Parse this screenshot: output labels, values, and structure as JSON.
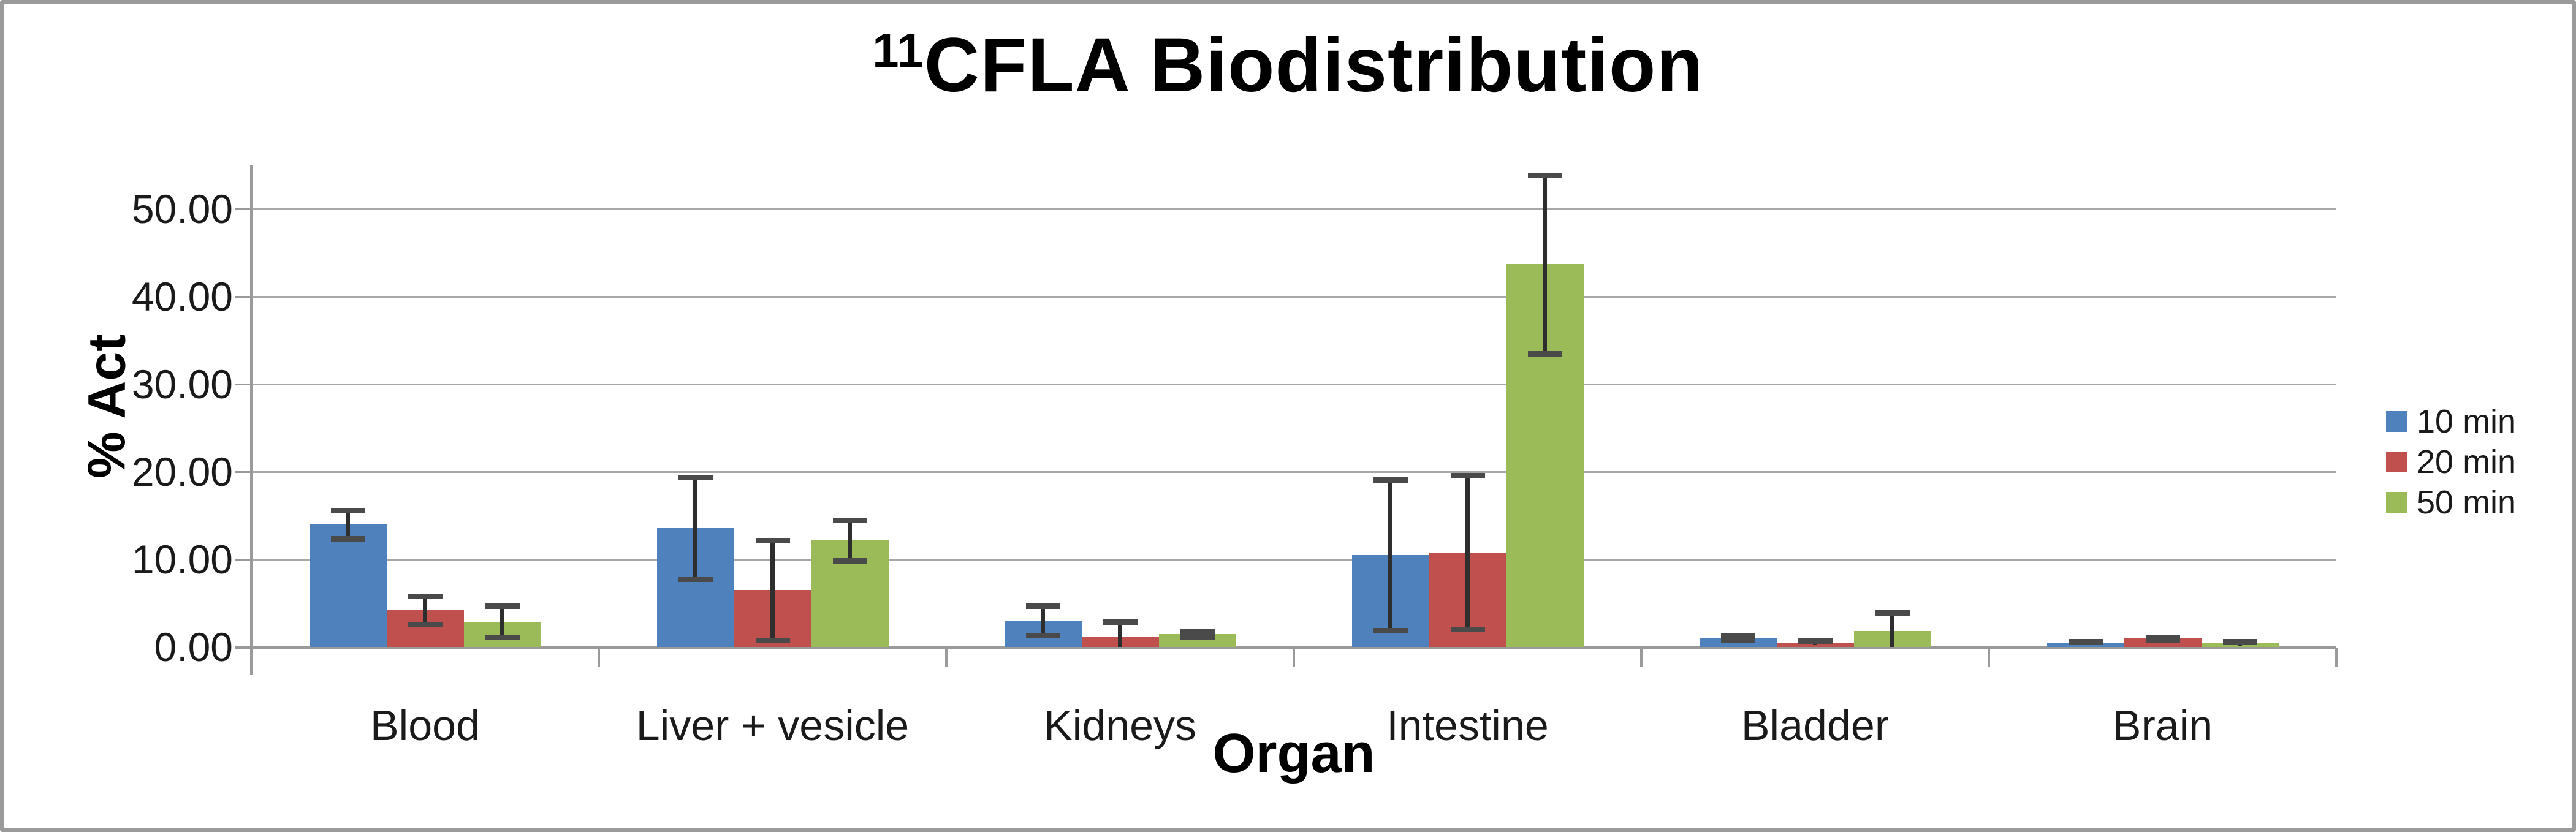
{
  "title": {
    "superscript": "11",
    "text": "CFLA Biodistribution"
  },
  "axes": {
    "y_label": "% Act",
    "x_label": "Organ"
  },
  "legend": {
    "position": "right",
    "items": [
      {
        "label": "10 min",
        "color": "#4F81BD"
      },
      {
        "label": "20 min",
        "color": "#C0504D"
      },
      {
        "label": "50 min",
        "color": "#9BBB59"
      }
    ]
  },
  "colors": {
    "gridline": "#a8a8a8",
    "axis": "#9a9a9a",
    "error_bar_line": "#2e2e2e",
    "error_bar_cap": "#4a4a4a",
    "frame_border": "#9a9a9a",
    "series_blue": "#4F81BD",
    "series_red": "#C0504D",
    "series_green": "#9BBB59"
  },
  "chart_data": {
    "type": "bar",
    "title": "11CFLA Biodistribution",
    "xlabel": "Organ",
    "ylabel": "% Act",
    "ylim": [
      0,
      55
    ],
    "grid": true,
    "legend_position": "right",
    "y_ticks": [
      {
        "value": 0,
        "label": "0.00"
      },
      {
        "value": 10,
        "label": "10.00"
      },
      {
        "value": 20,
        "label": "20.00"
      },
      {
        "value": 30,
        "label": "30.00"
      },
      {
        "value": 40,
        "label": "40.00"
      },
      {
        "value": 50,
        "label": "50.00"
      }
    ],
    "categories": [
      "Blood",
      "Liver + vesicle",
      "Kidneys",
      "Intestine",
      "Bladder",
      "Brain"
    ],
    "series": [
      {
        "name": "10 min",
        "color": "#4F81BD",
        "values": [
          14.0,
          13.6,
          3.0,
          10.5,
          1.0,
          0.4
        ],
        "error_plus": [
          1.6,
          5.8,
          1.7,
          8.6,
          0.25,
          0.2
        ],
        "error_minus": [
          1.6,
          5.8,
          1.7,
          8.6,
          0.25,
          0.2
        ]
      },
      {
        "name": "20 min",
        "color": "#C0504D",
        "values": [
          4.2,
          6.5,
          1.1,
          10.8,
          0.45,
          0.95
        ],
        "error_plus": [
          1.6,
          5.7,
          1.8,
          8.8,
          0.25,
          0.2
        ],
        "error_minus": [
          1.6,
          5.7,
          1.1,
          8.8,
          0.25,
          0.2
        ]
      },
      {
        "name": "50 min",
        "color": "#9BBB59",
        "values": [
          2.9,
          12.2,
          1.5,
          43.7,
          1.8,
          0.4
        ],
        "error_plus": [
          1.8,
          2.3,
          0.3,
          10.2,
          2.1,
          0.25
        ],
        "error_minus": [
          1.8,
          2.3,
          0.3,
          10.2,
          1.8,
          0.25
        ]
      }
    ]
  }
}
